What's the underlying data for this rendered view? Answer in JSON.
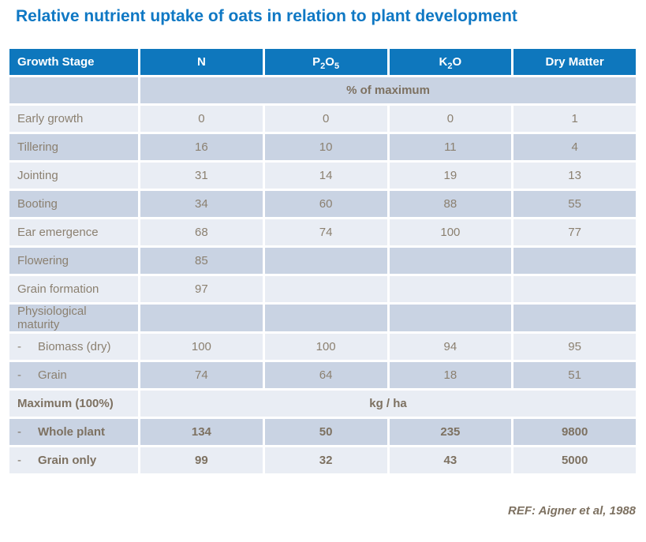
{
  "title": "Relative nutrient uptake of oats in relation to plant development",
  "footer": {
    "ref": "REF: Aigner et al, 1988"
  },
  "colors": {
    "title_blue": "#0f78c4",
    "header_blue": "#0e77bd",
    "row_dark": "#c9d3e3",
    "row_light": "#e9edf4",
    "text_normal": "#8b8070",
    "text_bold": "#7d7161",
    "header_text": "#ffffff"
  },
  "table": {
    "dash_char": "-",
    "columns": [
      {
        "id": "growth-stage",
        "segments": [
          {
            "t": "Growth Stage"
          }
        ]
      },
      {
        "id": "n",
        "segments": [
          {
            "t": "N"
          }
        ]
      },
      {
        "id": "p2o5",
        "segments": [
          {
            "t": "P"
          },
          {
            "t": "2",
            "sub": true
          },
          {
            "t": "O"
          },
          {
            "t": "5",
            "sub": true
          }
        ]
      },
      {
        "id": "k2o",
        "segments": [
          {
            "t": "K"
          },
          {
            "t": "2",
            "sub": true
          },
          {
            "t": "O"
          }
        ]
      },
      {
        "id": "dry-matter",
        "segments": [
          {
            "t": "Dry Matter"
          }
        ]
      }
    ],
    "rows": [
      {
        "label": "",
        "span": "% of maximum",
        "bold": true,
        "shade": "dark"
      },
      {
        "label": "Early growth",
        "values": [
          "0",
          "0",
          "0",
          "1"
        ],
        "shade": "light"
      },
      {
        "label": "Tillering",
        "values": [
          "16",
          "10",
          "11",
          "4"
        ],
        "shade": "dark"
      },
      {
        "label": "Jointing",
        "values": [
          "31",
          "14",
          "19",
          "13"
        ],
        "shade": "light"
      },
      {
        "label": "Booting",
        "values": [
          "34",
          "60",
          "88",
          "55"
        ],
        "shade": "dark"
      },
      {
        "label": "Ear emergence",
        "values": [
          "68",
          "74",
          "100",
          "77"
        ],
        "shade": "light"
      },
      {
        "label": "Flowering",
        "values": [
          "85",
          "",
          "",
          ""
        ],
        "shade": "dark"
      },
      {
        "label": "Grain formation",
        "values": [
          "97",
          "",
          "",
          ""
        ],
        "shade": "light"
      },
      {
        "label": "Physiological maturity",
        "values": [
          "",
          "",
          "",
          ""
        ],
        "shade": "dark"
      },
      {
        "label": "Biomass (dry)",
        "dash": true,
        "values": [
          "100",
          "100",
          "94",
          "95"
        ],
        "shade": "light"
      },
      {
        "label": "Grain",
        "dash": true,
        "values": [
          "74",
          "64",
          "18",
          "51"
        ],
        "shade": "dark"
      },
      {
        "label": "Maximum (100%)",
        "span": "kg / ha",
        "bold": true,
        "shade": "light"
      },
      {
        "label": "Whole plant",
        "dash": true,
        "bold": true,
        "values": [
          "134",
          "50",
          "235",
          "9800"
        ],
        "shade": "dark"
      },
      {
        "label": "Grain only",
        "dash": true,
        "bold": true,
        "values": [
          "99",
          "32",
          "43",
          "5000"
        ],
        "shade": "light"
      }
    ]
  }
}
